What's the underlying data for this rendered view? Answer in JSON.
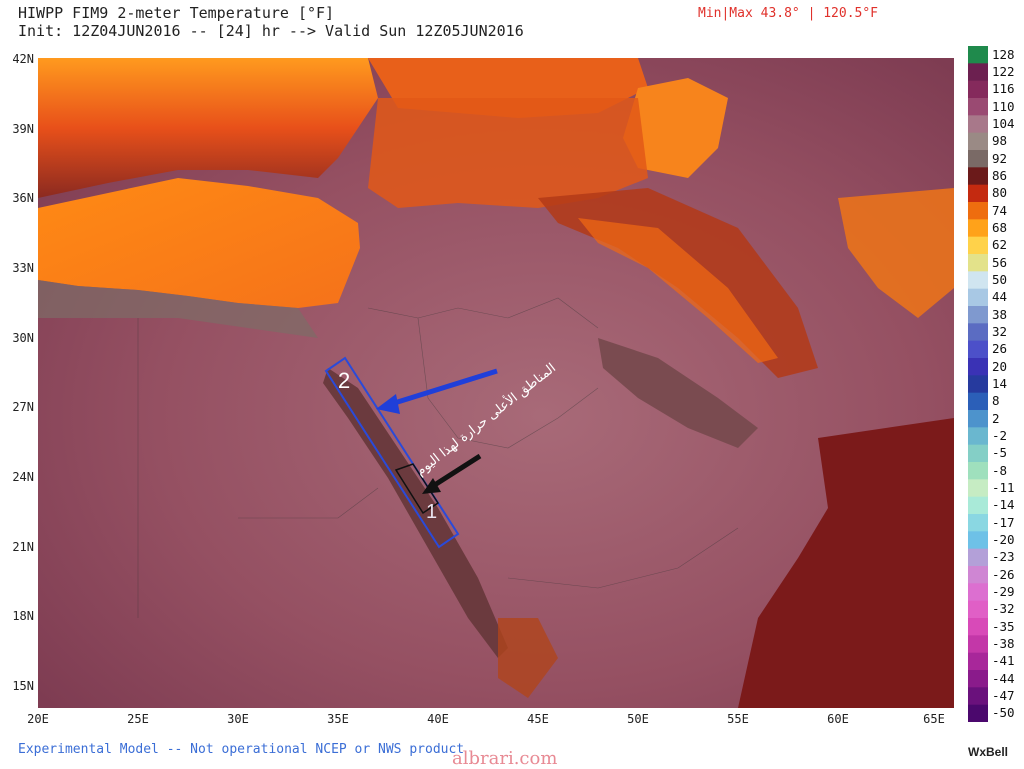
{
  "header": {
    "title_line1": "HIWPP FIM9 2-meter Temperature [°F]",
    "title_line2": "Init: 12Z04JUN2016 -- [24] hr --> Valid Sun 12Z05JUN2016",
    "minmax": "Min|Max 43.8° | 120.5°F"
  },
  "axes": {
    "lat_labels": [
      "42N",
      "39N",
      "36N",
      "33N",
      "30N",
      "27N",
      "24N",
      "21N",
      "18N",
      "15N"
    ],
    "lon_labels": [
      "20E",
      "25E",
      "30E",
      "35E",
      "40E",
      "45E",
      "50E",
      "55E",
      "60E",
      "65E"
    ]
  },
  "legend": {
    "labels": [
      "128",
      "122",
      "116",
      "110",
      "104",
      "98",
      "92",
      "86",
      "80",
      "74",
      "68",
      "62",
      "56",
      "50",
      "44",
      "38",
      "32",
      "26",
      "20",
      "14",
      "8",
      "2",
      "-2",
      "-5",
      "-8",
      "-11",
      "-14",
      "-17",
      "-20",
      "-23",
      "-26",
      "-29",
      "-32",
      "-35",
      "-38",
      "-41",
      "-44",
      "-47",
      "-50"
    ],
    "colors": [
      "#1f8a4c",
      "#6c2050",
      "#852a5c",
      "#9a4a72",
      "#a8788a",
      "#9a8a85",
      "#7a6a66",
      "#6b1a1a",
      "#c42a10",
      "#ee6d0f",
      "#ffa21a",
      "#ffd24a",
      "#e3e28a",
      "#d0e5f0",
      "#a8c8e4",
      "#7f99cf",
      "#5b6cc2",
      "#4c50c9",
      "#3a32b5",
      "#263a9e",
      "#2b5fb8",
      "#4d93cc",
      "#6ab7cf",
      "#84cfc6",
      "#9fe0bd",
      "#c6ecc3",
      "#a9ead8",
      "#8ad7e2",
      "#6ec1e7",
      "#b3a0d8",
      "#cf86d3",
      "#dc6fd0",
      "#e05fc6",
      "#d84ab8",
      "#c337a8",
      "#a8279a",
      "#8a1b8b",
      "#6a117c",
      "#4b086d"
    ]
  },
  "annotation": {
    "text": "المناطق الأعلى حرارة لهذا اليوم",
    "box_label_1": "1",
    "box_label_2": "2"
  },
  "footer": {
    "disclaimer": "Experimental Model -- Not operational NCEP or NWS product",
    "watermark": "albrari.com",
    "brand": "WxBell"
  },
  "colors": {
    "sea_mediterranean": "#f7841c",
    "land_hot": "#9a5a66",
    "land_mountain": "#7a3a2a",
    "arrow_blue": "#1f3fd9",
    "box_blue": "#2a4ad9"
  }
}
